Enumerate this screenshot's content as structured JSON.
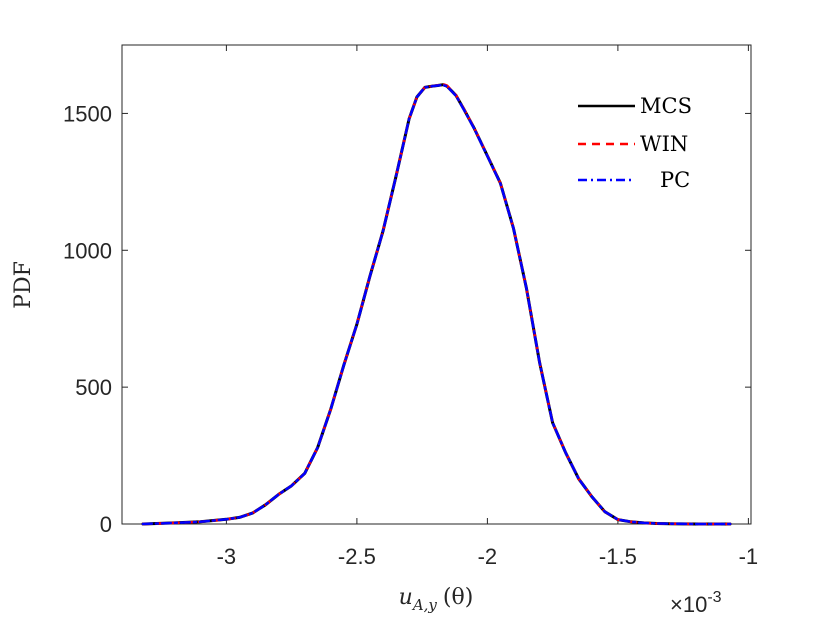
{
  "chart_data": {
    "type": "line",
    "title": "",
    "xlabel": "u_{A,y} (θ)",
    "xlabel_parts": {
      "u": "u",
      "sub": "A,y",
      "theta": "(θ)"
    },
    "ylabel": "PDF",
    "xlim": [
      -3.4,
      -0.99
    ],
    "ylim": [
      0,
      1750
    ],
    "x_scale_note": {
      "times": "×10",
      "exp": "-3"
    },
    "x_ticks": [
      -3,
      -2.5,
      -2,
      -1.5,
      -1
    ],
    "x_tick_labels": [
      "-3",
      "-2.5",
      "-2",
      "-1.5",
      "-1"
    ],
    "y_ticks": [
      0,
      500,
      1000,
      1500
    ],
    "y_tick_labels": [
      "0",
      "500",
      "1000",
      "1500"
    ],
    "grid": false,
    "legend_position": "top-right",
    "x": [
      -3.32,
      -3.2,
      -3.1,
      -3.0,
      -2.95,
      -2.9,
      -2.85,
      -2.8,
      -2.75,
      -2.7,
      -2.65,
      -2.6,
      -2.55,
      -2.5,
      -2.45,
      -2.4,
      -2.35,
      -2.3,
      -2.27,
      -2.24,
      -2.21,
      -2.19,
      -2.17,
      -2.155,
      -2.14,
      -2.12,
      -2.09,
      -2.05,
      -2.0,
      -1.95,
      -1.9,
      -1.85,
      -1.8,
      -1.75,
      -1.7,
      -1.65,
      -1.6,
      -1.55,
      -1.5,
      -1.45,
      -1.4,
      -1.35,
      -1.3,
      -1.2,
      -1.1,
      -1.07
    ],
    "series": [
      {
        "name": "MCS",
        "color": "#000000",
        "dash": "solid",
        "values": [
          0,
          4,
          8,
          17,
          24,
          40,
          70,
          108,
          140,
          185,
          280,
          420,
          580,
          730,
          905,
          1070,
          1270,
          1480,
          1560,
          1595,
          1600,
          1602,
          1605,
          1600,
          1585,
          1565,
          1515,
          1445,
          1345,
          1245,
          1080,
          860,
          590,
          370,
          260,
          165,
          100,
          45,
          16,
          8,
          4,
          2,
          1,
          0,
          0,
          0
        ]
      },
      {
        "name": "WIN",
        "color": "#ff0000",
        "dash": "dashed",
        "values": [
          0,
          4,
          8,
          17,
          24,
          40,
          70,
          108,
          140,
          185,
          280,
          420,
          580,
          730,
          905,
          1070,
          1270,
          1480,
          1560,
          1595,
          1600,
          1603,
          1607,
          1602,
          1586,
          1566,
          1516,
          1446,
          1346,
          1245,
          1080,
          860,
          590,
          370,
          260,
          165,
          100,
          45,
          16,
          8,
          4,
          2,
          1,
          0,
          0,
          0
        ]
      },
      {
        "name": "PC",
        "color": "#0000ff",
        "dash": "dashdot",
        "values": [
          0,
          4,
          8,
          17,
          24,
          40,
          70,
          108,
          140,
          185,
          280,
          420,
          580,
          730,
          905,
          1070,
          1270,
          1480,
          1560,
          1595,
          1600,
          1602,
          1604,
          1599,
          1584,
          1564,
          1514,
          1444,
          1344,
          1244,
          1080,
          860,
          590,
          370,
          260,
          165,
          100,
          45,
          16,
          8,
          4,
          2,
          1,
          0,
          0,
          0
        ]
      }
    ]
  }
}
